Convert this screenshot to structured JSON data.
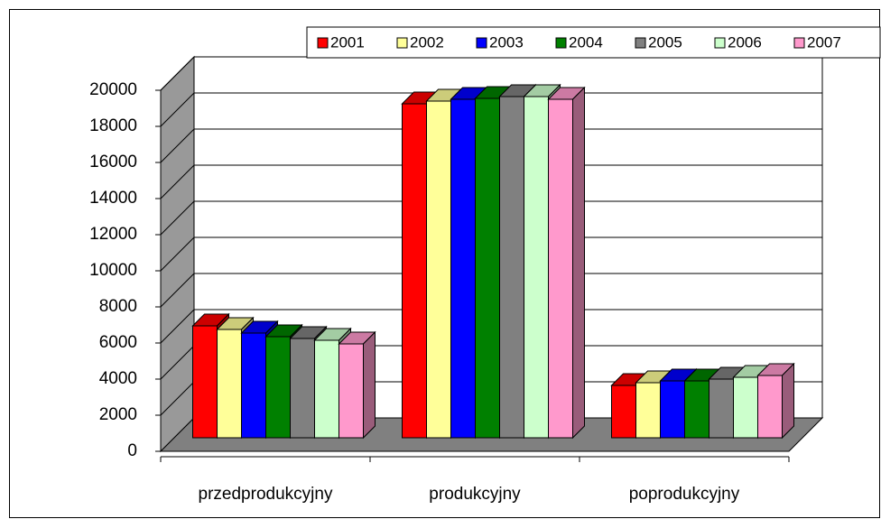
{
  "chart_data": {
    "type": "bar3d",
    "categories": [
      "przedprodukcyjny",
      "produkcyjny",
      "poprodukcyjny"
    ],
    "series": [
      {
        "name": "2001",
        "color": "#ff0000",
        "values": [
          6200,
          18500,
          2900
        ]
      },
      {
        "name": "2002",
        "color": "#ffff99",
        "values": [
          6000,
          18650,
          3050
        ]
      },
      {
        "name": "2003",
        "color": "#0000ff",
        "values": [
          5800,
          18750,
          3150
        ]
      },
      {
        "name": "2004",
        "color": "#008000",
        "values": [
          5600,
          18800,
          3150
        ]
      },
      {
        "name": "2005",
        "color": "#808080",
        "values": [
          5500,
          18900,
          3250
        ]
      },
      {
        "name": "2006",
        "color": "#ccffcc",
        "values": [
          5400,
          18900,
          3350
        ]
      },
      {
        "name": "2007",
        "color": "#ff99cc",
        "values": [
          5200,
          18750,
          3450
        ]
      }
    ],
    "ylim": [
      0,
      20000
    ],
    "yticks": [
      0,
      2000,
      4000,
      6000,
      8000,
      10000,
      12000,
      14000,
      16000,
      18000,
      20000
    ],
    "grid": true,
    "legend": "top-right"
  }
}
